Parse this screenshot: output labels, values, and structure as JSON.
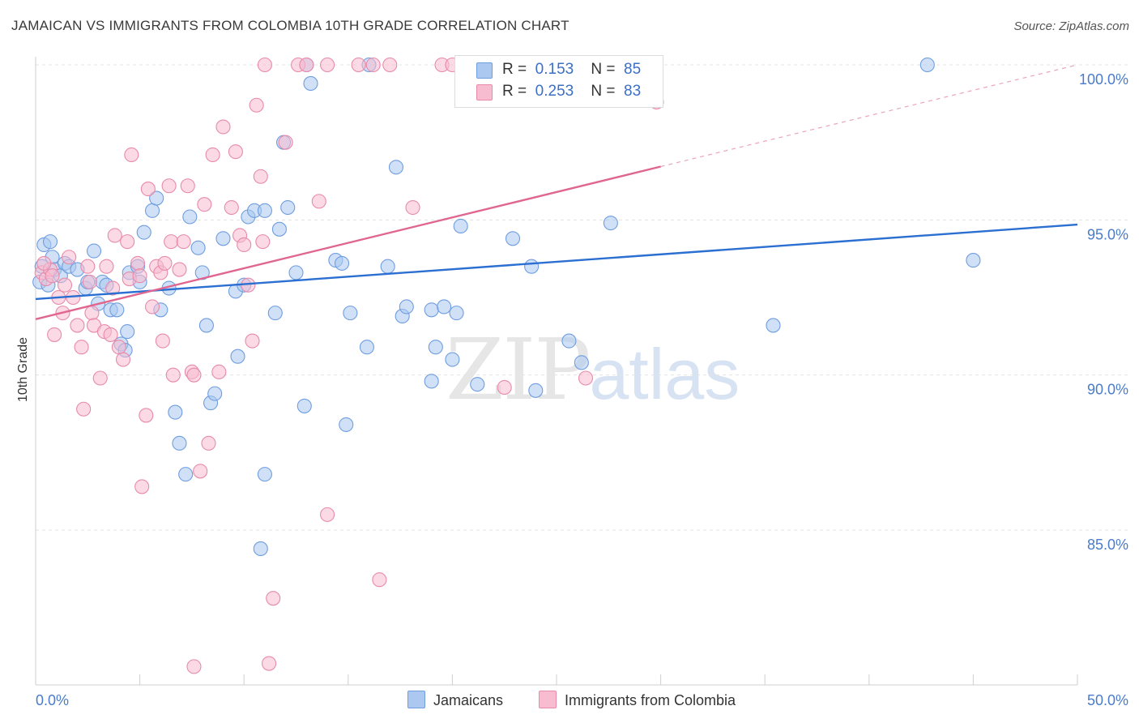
{
  "header": {
    "title": "JAMAICAN VS IMMIGRANTS FROM COLOMBIA 10TH GRADE CORRELATION CHART",
    "source": "Source: ZipAtlas.com"
  },
  "legend": {
    "blue": {
      "r_label": "R =",
      "r_value": "0.153",
      "n_label": "N =",
      "n_value": "85"
    },
    "pink": {
      "r_label": "R =",
      "r_value": "0.253",
      "n_label": "N =",
      "n_value": "83"
    }
  },
  "bottom_legend": {
    "blue_label": "Jamaicans",
    "pink_label": "Immigrants from Colombia"
  },
  "watermark": {
    "zip": "ZIP",
    "atlas": "atlas"
  },
  "colors": {
    "blue_fill": "#aac8f0",
    "blue_stroke": "#6f9de0",
    "blue_line": "#2a6fd1",
    "pink_fill": "#f7bcd0",
    "pink_stroke": "#e88aa9",
    "pink_line": "#e06690",
    "grid": "#e3e3e3",
    "tick_text": "#4a7cc9"
  },
  "chart_data": {
    "type": "scatter",
    "title": "JAMAICAN VS IMMIGRANTS FROM COLOMBIA 10TH GRADE CORRELATION CHART",
    "xlabel": "",
    "ylabel": "10th Grade",
    "xlim": [
      0,
      50
    ],
    "ylim": [
      80,
      100.5
    ],
    "x_tick_labels": [
      "0.0%",
      "50.0%"
    ],
    "y_ticks": [
      85,
      90,
      95,
      100
    ],
    "y_tick_labels": [
      "85.0%",
      "90.0%",
      "95.0%",
      "100.0%"
    ],
    "grid": true,
    "legend_placement": "top-center",
    "series": [
      {
        "name": "Jamaicans",
        "color": "#6f9de0",
        "trend": {
          "x": [
            0,
            50
          ],
          "y": [
            92.45,
            94.85
          ],
          "dashed_after": null
        },
        "points": [
          [
            0.3,
            93.5
          ],
          [
            0.4,
            94.2
          ],
          [
            0.7,
            94.3
          ],
          [
            0.8,
            93.8
          ],
          [
            0.9,
            93.4
          ],
          [
            1.2,
            93.2
          ],
          [
            1.4,
            93.6
          ],
          [
            1.6,
            93.5
          ],
          [
            2.0,
            93.4
          ],
          [
            2.4,
            92.8
          ],
          [
            2.5,
            93.0
          ],
          [
            2.8,
            94.0
          ],
          [
            3.0,
            92.3
          ],
          [
            3.2,
            93.0
          ],
          [
            3.4,
            92.9
          ],
          [
            3.6,
            92.1
          ],
          [
            3.9,
            92.1
          ],
          [
            4.1,
            91.0
          ],
          [
            4.4,
            91.4
          ],
          [
            4.3,
            90.8
          ],
          [
            4.5,
            93.3
          ],
          [
            4.9,
            93.5
          ],
          [
            5.0,
            93.0
          ],
          [
            5.2,
            94.6
          ],
          [
            5.6,
            95.3
          ],
          [
            5.8,
            95.7
          ],
          [
            6.0,
            92.1
          ],
          [
            6.4,
            92.8
          ],
          [
            6.7,
            88.8
          ],
          [
            6.9,
            87.8
          ],
          [
            7.2,
            86.8
          ],
          [
            7.4,
            95.1
          ],
          [
            7.8,
            94.1
          ],
          [
            8.0,
            93.3
          ],
          [
            8.2,
            91.6
          ],
          [
            8.4,
            89.1
          ],
          [
            8.6,
            89.4
          ],
          [
            9.0,
            94.4
          ],
          [
            9.6,
            92.7
          ],
          [
            9.7,
            90.6
          ],
          [
            10.0,
            92.9
          ],
          [
            10.2,
            95.1
          ],
          [
            10.5,
            95.3
          ],
          [
            10.8,
            84.4
          ],
          [
            11.0,
            86.8
          ],
          [
            11.0,
            95.3
          ],
          [
            11.5,
            92.0
          ],
          [
            11.7,
            94.7
          ],
          [
            11.9,
            97.5
          ],
          [
            12.1,
            95.4
          ],
          [
            12.5,
            93.3
          ],
          [
            12.9,
            89.0
          ],
          [
            13.0,
            100.0
          ],
          [
            13.2,
            99.4
          ],
          [
            14.4,
            93.7
          ],
          [
            14.7,
            93.6
          ],
          [
            14.9,
            88.4
          ],
          [
            15.1,
            92.0
          ],
          [
            15.9,
            90.9
          ],
          [
            16.0,
            100.0
          ],
          [
            16.9,
            93.5
          ],
          [
            17.3,
            96.7
          ],
          [
            17.6,
            91.9
          ],
          [
            17.8,
            92.2
          ],
          [
            19.0,
            89.8
          ],
          [
            19.0,
            92.1
          ],
          [
            19.2,
            90.9
          ],
          [
            19.6,
            92.2
          ],
          [
            20.0,
            90.5
          ],
          [
            20.2,
            92.0
          ],
          [
            20.4,
            94.8
          ],
          [
            21.2,
            89.7
          ],
          [
            22.9,
            94.4
          ],
          [
            23.8,
            93.5
          ],
          [
            24.0,
            89.5
          ],
          [
            25.6,
            91.1
          ],
          [
            26.2,
            90.4
          ],
          [
            26.6,
            100.0
          ],
          [
            27.5,
            100.0
          ],
          [
            27.6,
            94.9
          ],
          [
            35.4,
            91.6
          ],
          [
            42.8,
            100.0
          ],
          [
            45.0,
            93.7
          ],
          [
            0.2,
            93.0
          ],
          [
            0.6,
            92.9
          ]
        ]
      },
      {
        "name": "Immigrants from Colombia",
        "color": "#e88aa9",
        "trend": {
          "x": [
            0,
            50
          ],
          "y": [
            91.8,
            100.0
          ],
          "dashed_after": 30
        },
        "points": [
          [
            0.3,
            93.3
          ],
          [
            0.5,
            93.1
          ],
          [
            0.7,
            93.4
          ],
          [
            0.9,
            91.3
          ],
          [
            1.1,
            92.5
          ],
          [
            1.3,
            92.0
          ],
          [
            1.4,
            92.9
          ],
          [
            1.6,
            93.8
          ],
          [
            1.8,
            92.5
          ],
          [
            2.0,
            91.6
          ],
          [
            2.2,
            90.9
          ],
          [
            2.3,
            88.9
          ],
          [
            2.6,
            93.0
          ],
          [
            2.7,
            92.0
          ],
          [
            2.8,
            91.6
          ],
          [
            3.1,
            89.9
          ],
          [
            3.3,
            91.4
          ],
          [
            3.4,
            93.5
          ],
          [
            3.6,
            91.3
          ],
          [
            3.7,
            92.8
          ],
          [
            3.8,
            94.5
          ],
          [
            4.0,
            90.9
          ],
          [
            4.2,
            90.5
          ],
          [
            4.4,
            94.3
          ],
          [
            4.5,
            93.1
          ],
          [
            4.6,
            97.1
          ],
          [
            4.9,
            93.6
          ],
          [
            5.0,
            93.2
          ],
          [
            5.1,
            86.4
          ],
          [
            5.3,
            88.7
          ],
          [
            5.4,
            96.0
          ],
          [
            5.6,
            92.2
          ],
          [
            5.8,
            93.5
          ],
          [
            6.0,
            93.3
          ],
          [
            6.2,
            93.6
          ],
          [
            6.4,
            96.1
          ],
          [
            6.5,
            94.3
          ],
          [
            6.6,
            90.0
          ],
          [
            6.9,
            93.4
          ],
          [
            7.1,
            94.3
          ],
          [
            7.3,
            96.1
          ],
          [
            7.5,
            90.1
          ],
          [
            7.6,
            80.6
          ],
          [
            7.9,
            86.9
          ],
          [
            8.1,
            95.5
          ],
          [
            8.3,
            87.8
          ],
          [
            8.5,
            97.1
          ],
          [
            8.8,
            90.1
          ],
          [
            9.0,
            98.0
          ],
          [
            9.4,
            95.4
          ],
          [
            9.6,
            97.2
          ],
          [
            9.8,
            94.5
          ],
          [
            10.0,
            94.2
          ],
          [
            10.2,
            92.9
          ],
          [
            10.4,
            91.1
          ],
          [
            10.6,
            98.7
          ],
          [
            10.8,
            96.4
          ],
          [
            10.9,
            94.3
          ],
          [
            11.0,
            100.0
          ],
          [
            11.2,
            80.7
          ],
          [
            11.4,
            82.8
          ],
          [
            12.0,
            97.5
          ],
          [
            12.6,
            100.0
          ],
          [
            13.0,
            100.0
          ],
          [
            13.6,
            95.6
          ],
          [
            14.0,
            100.0
          ],
          [
            14.0,
            85.5
          ],
          [
            15.5,
            100.0
          ],
          [
            16.2,
            100.0
          ],
          [
            16.5,
            83.4
          ],
          [
            17.0,
            100.0
          ],
          [
            18.1,
            95.4
          ],
          [
            19.5,
            100.0
          ],
          [
            20.0,
            100.0
          ],
          [
            22.5,
            89.6
          ],
          [
            26.4,
            89.9
          ],
          [
            28.0,
            100.0
          ],
          [
            29.8,
            98.8
          ],
          [
            0.4,
            93.6
          ],
          [
            0.8,
            93.2
          ],
          [
            2.5,
            93.5
          ],
          [
            6.1,
            91.1
          ],
          [
            7.6,
            90.0
          ]
        ]
      }
    ]
  }
}
